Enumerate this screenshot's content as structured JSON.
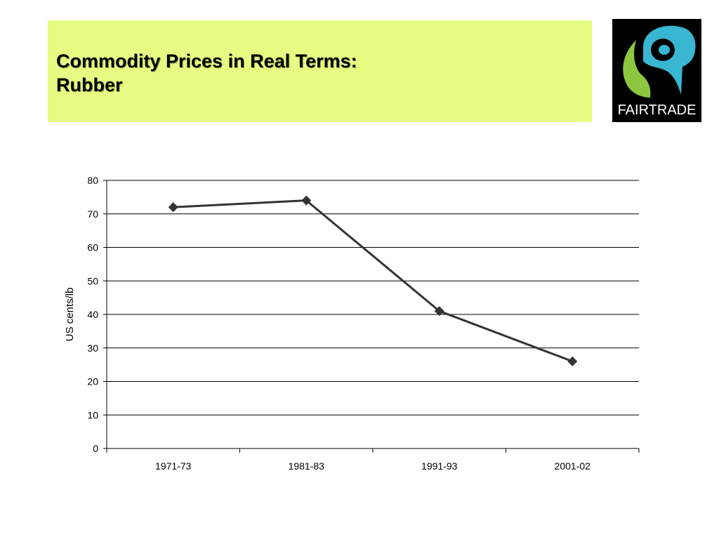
{
  "slide": {
    "title_line1": "Commodity Prices in Real Terms:",
    "title_line2": "Rubber",
    "banner_color": "#e4fd82",
    "logo_text": "FAIRTRADE",
    "logo_colors": {
      "background": "#000000",
      "blue": "#38b6d2",
      "green": "#8dc63f",
      "text": "#ffffff"
    }
  },
  "chart_data": {
    "type": "line",
    "title": "",
    "xlabel": "",
    "ylabel": "US cents/lb",
    "categories": [
      "1971-73",
      "1981-83",
      "1991-93",
      "2001-02"
    ],
    "series": [
      {
        "values": [
          72,
          74,
          41,
          26
        ],
        "marker": "diamond",
        "color": "#333333"
      }
    ],
    "ylim": [
      0,
      80
    ],
    "yticks": [
      0,
      10,
      20,
      30,
      40,
      50,
      60,
      70,
      80
    ],
    "grid": true,
    "legend": "none"
  }
}
